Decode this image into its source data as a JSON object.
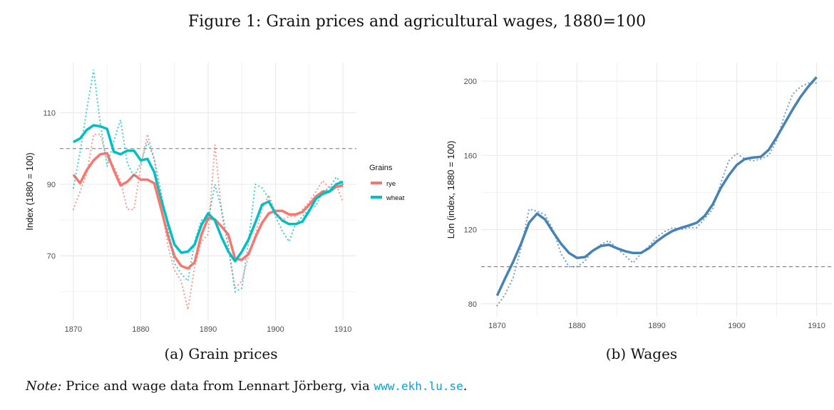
{
  "figure_title": "Figure 1: Grain prices and agricultural wages, 1880=100",
  "note": {
    "label": "Note:",
    "text": " Price and wage data from Lennart Jörberg, via ",
    "url": "www.ekh.lu.se",
    "end": "."
  },
  "chart_data": [
    {
      "type": "line",
      "caption": "(a) Grain prices",
      "ylabel": "Index (1880 = 100)",
      "xlabel": "",
      "xlim": [
        1868,
        1912
      ],
      "ylim": [
        52,
        124
      ],
      "xticks": [
        1870,
        1880,
        1890,
        1900,
        1910
      ],
      "yticks": [
        70,
        90,
        110
      ],
      "minor_yticks": [
        60,
        80,
        100
      ],
      "reference_line": 100,
      "grid": true,
      "legend": {
        "title": "Grains",
        "placement": "right",
        "entries": [
          "rye",
          "wheat"
        ]
      },
      "x": [
        1870,
        1871,
        1872,
        1873,
        1874,
        1875,
        1876,
        1877,
        1878,
        1879,
        1880,
        1881,
        1882,
        1883,
        1884,
        1885,
        1886,
        1887,
        1888,
        1889,
        1890,
        1891,
        1892,
        1893,
        1894,
        1895,
        1896,
        1897,
        1898,
        1899,
        1900,
        1901,
        1902,
        1903,
        1904,
        1905,
        1906,
        1907,
        1908,
        1909,
        1910
      ],
      "series": [
        {
          "name": "rye",
          "color": "#F8766D",
          "kind": "smoothed",
          "values": [
            92.7,
            90.3,
            94,
            96.7,
            98.4,
            98.7,
            94,
            89.7,
            90.7,
            92.7,
            91.3,
            91.3,
            90.3,
            83.3,
            75.9,
            69.9,
            67.2,
            66.5,
            68.2,
            75.9,
            80.6,
            80.2,
            78.2,
            75.9,
            69.2,
            68.9,
            70.5,
            75.2,
            79.2,
            81.9,
            82.6,
            82.6,
            81.6,
            81.6,
            82.3,
            84.3,
            86.6,
            88,
            88,
            89.3,
            89.7
          ]
        },
        {
          "name": "wheat",
          "color": "#00BFC4",
          "kind": "smoothed",
          "values": [
            101.8,
            102.8,
            105.2,
            106.5,
            106.2,
            105.5,
            99.1,
            98.4,
            99.4,
            99.4,
            96.7,
            97.1,
            93.4,
            86,
            79.3,
            73.2,
            70.9,
            71.2,
            73.2,
            78.6,
            81.9,
            79.9,
            75.2,
            71.2,
            68.5,
            71.2,
            74.6,
            79.3,
            84.3,
            85.2,
            81.9,
            79.9,
            78.9,
            78.9,
            79.6,
            82.6,
            86,
            87.3,
            88,
            90,
            90.7
          ]
        },
        {
          "name": "rye",
          "color": "#F8766D",
          "kind": "raw",
          "values": [
            83,
            88,
            93,
            104,
            104,
            97,
            95,
            91,
            83,
            83,
            95,
            104,
            97,
            85,
            73,
            66,
            63,
            55,
            67,
            74,
            76,
            101,
            82,
            72,
            61,
            63,
            70,
            76,
            83,
            87,
            82,
            80,
            81,
            81,
            83,
            85,
            88,
            91,
            89,
            90,
            85
          ]
        },
        {
          "name": "wheat",
          "color": "#00BFC4",
          "kind": "raw",
          "values": [
            89,
            99,
            111,
            122,
            107,
            95,
            102,
            108,
            96,
            92,
            96,
            102,
            97,
            88,
            78,
            68,
            65,
            63,
            74,
            80,
            80,
            90,
            83,
            73,
            60,
            61,
            74,
            90,
            89,
            86,
            81,
            77,
            74,
            79,
            81,
            83,
            84,
            88,
            89,
            92,
            90
          ]
        }
      ]
    },
    {
      "type": "line",
      "caption": "(b) Wages",
      "ylabel": "Lön (index, 1880 = 100)",
      "xlabel": "",
      "xlim": [
        1868,
        1912
      ],
      "ylim": [
        73,
        210
      ],
      "xticks": [
        1870,
        1880,
        1890,
        1900,
        1910
      ],
      "yticks": [
        80,
        120,
        160,
        200
      ],
      "minor_yticks": [
        100,
        140,
        180
      ],
      "reference_line": 100,
      "grid": true,
      "x": [
        1870,
        1871,
        1872,
        1873,
        1874,
        1875,
        1876,
        1877,
        1878,
        1879,
        1880,
        1881,
        1882,
        1883,
        1884,
        1885,
        1886,
        1887,
        1888,
        1889,
        1890,
        1891,
        1892,
        1893,
        1894,
        1895,
        1896,
        1897,
        1898,
        1899,
        1900,
        1901,
        1902,
        1903,
        1904,
        1905,
        1906,
        1907,
        1908,
        1909,
        1910
      ],
      "series": [
        {
          "name": "wage",
          "color": "#4682B4",
          "kind": "smoothed",
          "values": [
            84.4,
            93.7,
            102.5,
            112.4,
            123.7,
            128.6,
            125.5,
            118.7,
            112.4,
            107.4,
            104.7,
            105.2,
            108.7,
            111.2,
            111.8,
            109.9,
            108.4,
            107.4,
            107.4,
            109.9,
            113.7,
            116.8,
            119.3,
            120.9,
            122.2,
            123.7,
            127.4,
            133.6,
            142.4,
            149.2,
            154.8,
            158,
            158.8,
            159.2,
            163,
            169.8,
            177.3,
            184.8,
            191.6,
            197.3,
            202.2
          ]
        },
        {
          "name": "wage",
          "color": "#4682B4",
          "kind": "raw",
          "values": [
            79,
            85,
            94,
            110,
            131,
            130,
            128,
            120,
            107,
            100,
            100,
            103,
            109,
            112,
            114,
            110,
            106,
            102,
            107,
            111,
            116,
            119,
            121,
            120,
            121,
            121,
            126,
            131,
            145,
            157,
            161,
            158,
            157,
            158,
            160,
            168,
            182,
            193,
            197,
            199,
            199
          ]
        }
      ]
    }
  ]
}
